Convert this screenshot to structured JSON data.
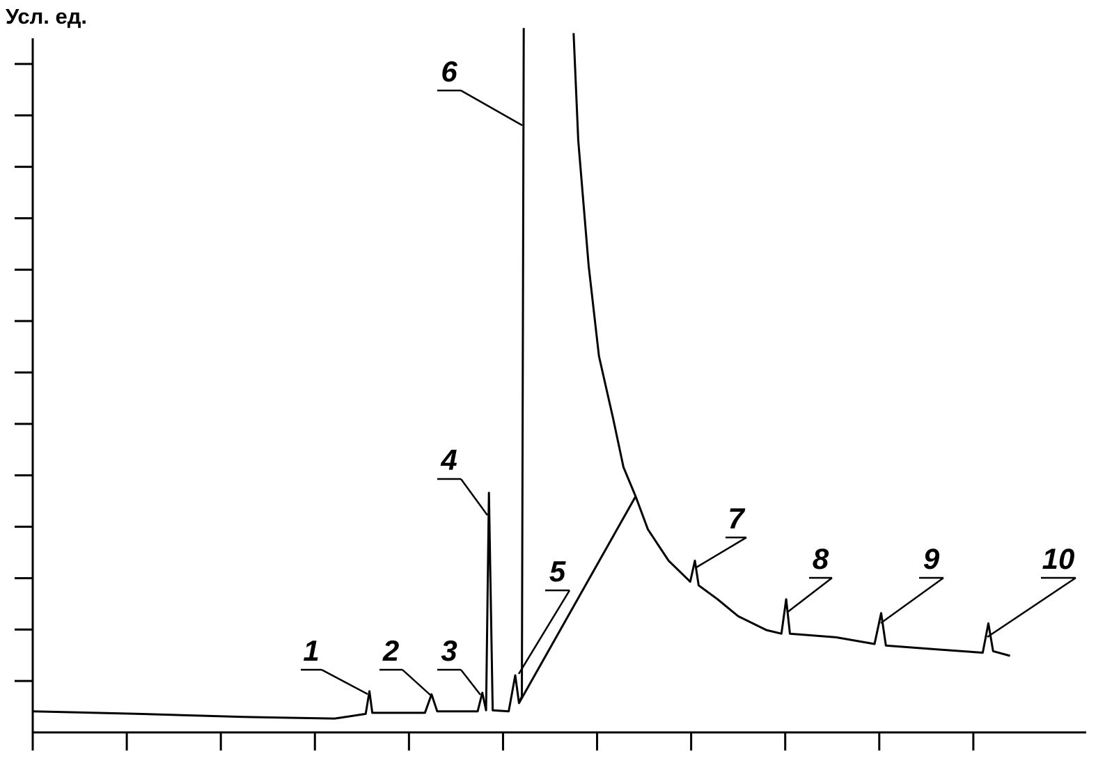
{
  "chart_data": {
    "type": "line",
    "y_label": "Усл. ед.",
    "xlim": [
      0,
      11.2
    ],
    "xticks": [
      1,
      2,
      3,
      4,
      5,
      6,
      7,
      8,
      9,
      10
    ],
    "ylim": [
      0,
      13.5
    ],
    "yticks": [
      1,
      2,
      3,
      4,
      5,
      6,
      7,
      8,
      9,
      10,
      11,
      12,
      13
    ],
    "color": "#000000",
    "series": [
      {
        "x": [
          0,
          1.13,
          2.24,
          3.21,
          3.54,
          3.58,
          3.61,
          4.17,
          4.24,
          4.3,
          4.73,
          4.78,
          4.82,
          4.85,
          4.89,
          5.06,
          5.13,
          5.17,
          5.2,
          5.22,
          null,
          5.75,
          5.8,
          5.91,
          6.02,
          6.17,
          6.28,
          6.41,
          6.54,
          6.76,
          6.99,
          7.04,
          7.08,
          7.28,
          7.5,
          7.8,
          7.96,
          8.01,
          8.05,
          8.54,
          8.95,
          9.02,
          9.07,
          9.65,
          10.1,
          10.16,
          10.21,
          10.39
        ],
        "values": [
          0.41,
          0.36,
          0.3,
          0.27,
          0.36,
          0.8,
          0.38,
          0.38,
          0.74,
          0.41,
          0.41,
          0.77,
          0.43,
          4.66,
          0.43,
          0.41,
          1.11,
          0.57,
          0.7,
          13.7,
          null,
          13.6,
          11.51,
          9.08,
          7.32,
          6.11,
          5.16,
          4.59,
          3.95,
          3.34,
          2.93,
          3.34,
          2.86,
          2.59,
          2.26,
          1.99,
          1.92,
          2.59,
          1.92,
          1.85,
          1.72,
          2.32,
          1.69,
          1.61,
          1.55,
          2.12,
          1.58,
          1.49
        ]
      },
      {
        "x": [
          5.17,
          6.41
        ],
        "values": [
          0.57,
          4.59
        ]
      }
    ],
    "peak_labels": [
      "1",
      "2",
      "3",
      "4",
      "5",
      "6",
      "7",
      "8",
      "9",
      "10"
    ]
  }
}
